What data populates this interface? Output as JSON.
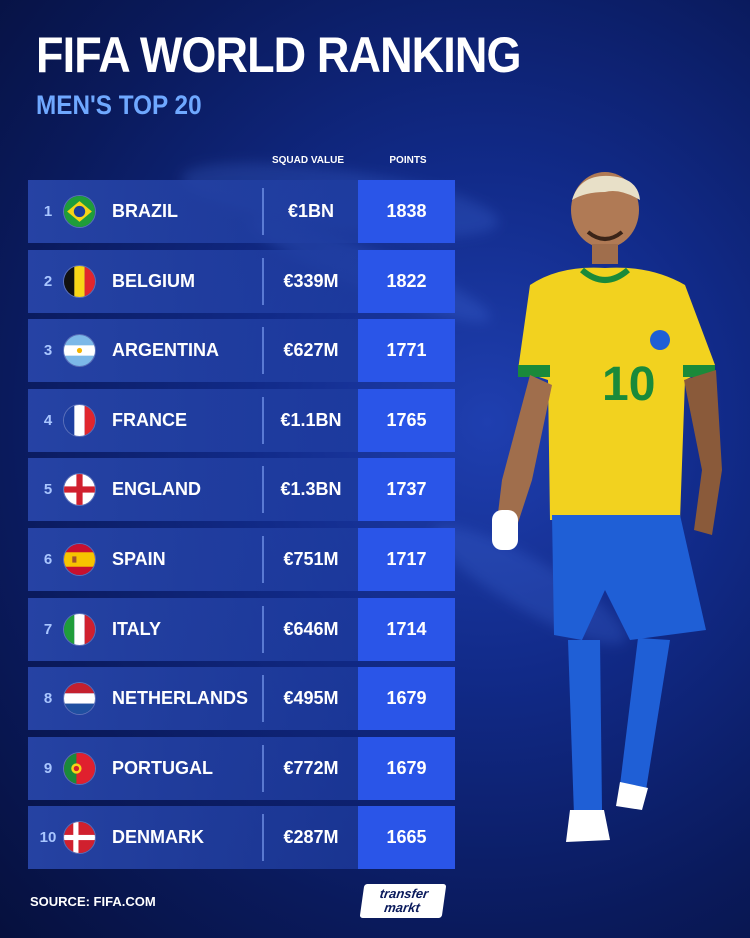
{
  "header": {
    "title": "FIFA WORLD RANKING",
    "subtitle": "MEN'S TOP 20"
  },
  "columns": {
    "squad_value": "SQUAD VALUE",
    "points": "POINTS"
  },
  "footer": {
    "source": "SOURCE: FIFA.COM",
    "logo_line1": "transfer",
    "logo_line2": "markt"
  },
  "colors": {
    "points_cell": "#2a55e8",
    "subtitle": "#6fa8ff",
    "jersey": "#f2d21f",
    "shorts": "#1f5fd6"
  },
  "chart_data": {
    "type": "table",
    "columns": [
      "",
      "",
      "SQUAD VALUE",
      "POINTS"
    ],
    "rows": [
      {
        "rank": "1",
        "country": "BRAZIL",
        "flag": "brazil-flag-icon",
        "squad_value": "€1BN",
        "points": 1838
      },
      {
        "rank": "2",
        "country": "BELGIUM",
        "flag": "belgium-flag-icon",
        "squad_value": "€339M",
        "points": 1822
      },
      {
        "rank": "3",
        "country": "ARGENTINA",
        "flag": "argentina-flag-icon",
        "squad_value": "€627M",
        "points": 1771
      },
      {
        "rank": "4",
        "country": "FRANCE",
        "flag": "france-flag-icon",
        "squad_value": "€1.1BN",
        "points": 1765
      },
      {
        "rank": "5",
        "country": "ENGLAND",
        "flag": "england-flag-icon",
        "squad_value": "€1.3BN",
        "points": 1737
      },
      {
        "rank": "6",
        "country": "SPAIN",
        "flag": "spain-flag-icon",
        "squad_value": "€751M",
        "points": 1717
      },
      {
        "rank": "7",
        "country": "ITALY",
        "flag": "italy-flag-icon",
        "squad_value": "€646M",
        "points": 1714
      },
      {
        "rank": "8",
        "country": "NETHERLANDS",
        "flag": "netherlands-flag-icon",
        "squad_value": "€495M",
        "points": 1679
      },
      {
        "rank": "9",
        "country": "PORTUGAL",
        "flag": "portugal-flag-icon",
        "squad_value": "€772M",
        "points": 1679
      },
      {
        "rank": "10",
        "country": "DENMARK",
        "flag": "denmark-flag-icon",
        "squad_value": "€287M",
        "points": 1665
      }
    ]
  }
}
